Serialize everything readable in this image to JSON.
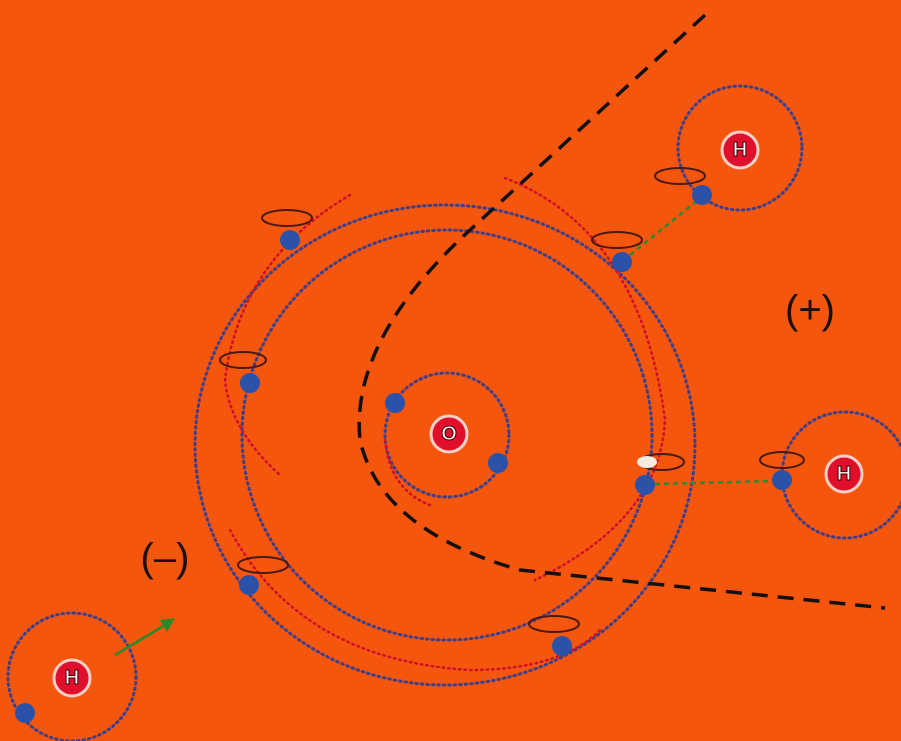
{
  "nodes": [
    {
      "label": "O"
    },
    {
      "label": "H"
    },
    {
      "label": "H"
    },
    {
      "label": "H"
    }
  ],
  "charges": [
    {
      "label": "(+)"
    },
    {
      "label": "(–)"
    }
  ]
}
